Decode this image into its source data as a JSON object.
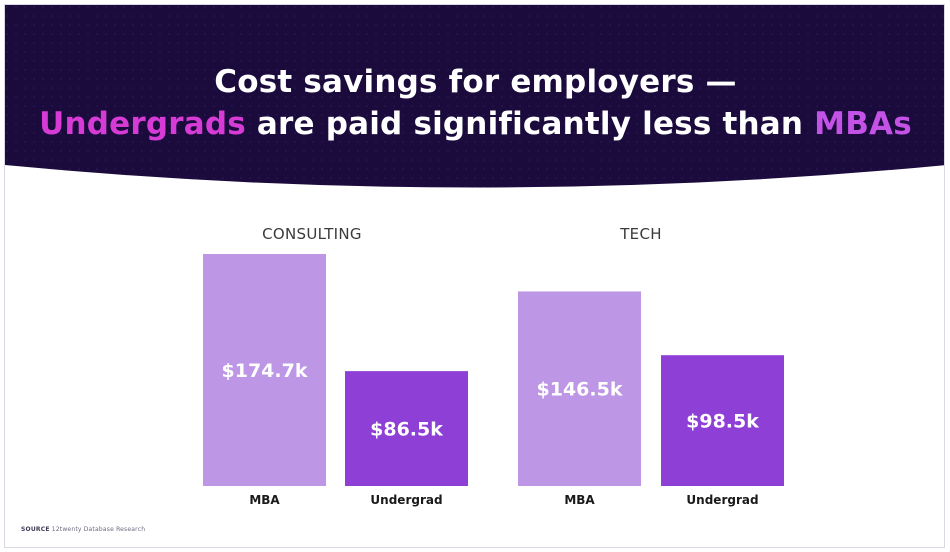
{
  "title": {
    "line1": "Cost savings for employers —",
    "line2_highlight_a": "Undergrads",
    "line2_middle": " are paid significantly less than ",
    "line2_highlight_b": "MBAs"
  },
  "colors": {
    "banner": "#1b0b3d",
    "mba_bar": "#bd96e6",
    "undergrad_bar": "#8e3fd6",
    "highlight_pink": "#d73bd6",
    "highlight_purple": "#c452e6",
    "group_title": "#3a3a3a",
    "category_label": "#1a1a1a"
  },
  "chart_data": {
    "type": "bar",
    "groups": [
      {
        "title": "CONSULTING",
        "categories": [
          "MBA",
          "Undergrad"
        ],
        "values": [
          174.7,
          86.5
        ],
        "labels": [
          "$174.7k",
          "$86.5k"
        ]
      },
      {
        "title": "TECH",
        "categories": [
          "MBA",
          "Undergrad"
        ],
        "values": [
          146.5,
          98.5
        ],
        "labels": [
          "$146.5k",
          "$98.5k"
        ]
      }
    ],
    "ylim": [
      0,
      174.7
    ],
    "grid": false,
    "legend": "none"
  },
  "source": {
    "label": "SOURCE",
    "text": "12twenty Database Research"
  }
}
